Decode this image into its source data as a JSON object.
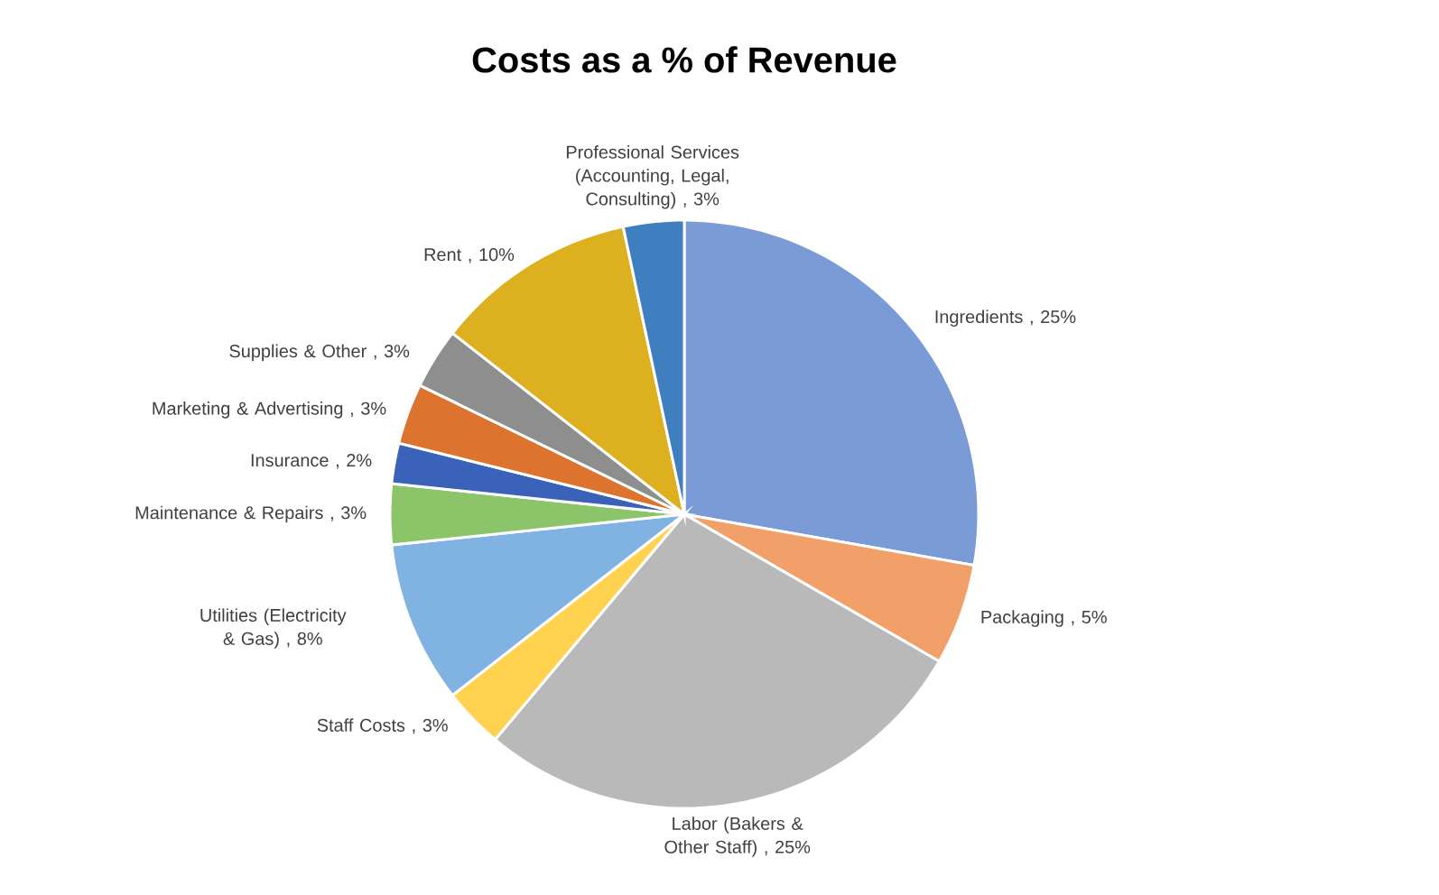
{
  "chart_data": {
    "type": "pie",
    "title": "Costs as a % of Revenue",
    "categories": [
      "Ingredients",
      "Packaging",
      "Labor (Bakers & Other Staff)",
      "Staff Costs",
      "Utilities (Electricity & Gas)",
      "Maintenance & Repairs",
      "Insurance",
      "Marketing & Advertising",
      "Supplies & Other",
      "Rent",
      "Professional Services (Accounting, Legal, Consulting)"
    ],
    "values": [
      25,
      5,
      25,
      3,
      8,
      3,
      2,
      3,
      3,
      10,
      3
    ],
    "value_labels": [
      ", 25%",
      ", 5%",
      ", 25%",
      ", 3%",
      ", 8%",
      ", 3%",
      ", 2%",
      ", 3%",
      ", 3%",
      ", 10%",
      ", 3%"
    ],
    "colors": [
      "#7b9bd6",
      "#f2a06a",
      "#b9b9b9",
      "#ffd24f",
      "#80b3e2",
      "#8cc46a",
      "#3a62b8",
      "#dc7430",
      "#8e8e8e",
      "#ddb020",
      "#3f7fbf"
    ],
    "data_labels": false
  }
}
